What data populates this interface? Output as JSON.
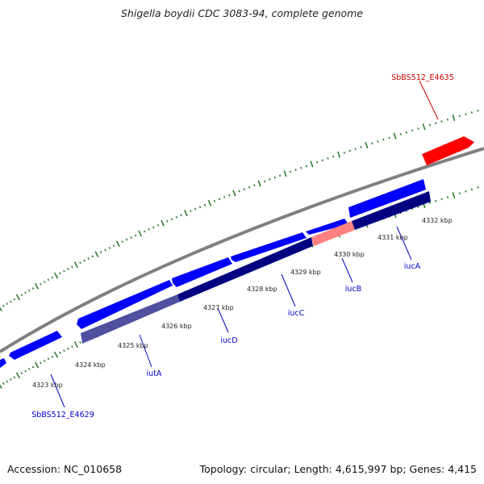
{
  "title": "Shigella boydii CDC 3083-94, complete genome",
  "footer": {
    "accession": "Accession: NC_010658",
    "topology": "Topology: circular; Length: 4,615,997 bp; Genes: 4,415"
  },
  "colors": {
    "backbone": "#808080",
    "cds_forward": "#0000ff",
    "cds_reverse": "#0000ff",
    "operon": "#000080",
    "operon_highlight": "#ff6b6b",
    "operon_light": "#5050a0",
    "feature_red": "#ff0000",
    "tick": "#2f7d2f",
    "gene_label": "#0000cc",
    "feature_label": "#cc0000"
  },
  "ticks": [
    "4323 kbp",
    "4324 kbp",
    "4325 kbp",
    "4326 kbp",
    "4327 kbp",
    "4328 kbp",
    "4329 kbp",
    "4330 kbp",
    "4331 kbp",
    "4332 kbp"
  ],
  "genes": [
    "SbBS512_E4629",
    "iutA",
    "iucD",
    "iucC",
    "iucB",
    "iucA"
  ],
  "features": [
    "SbBS512_E4635"
  ]
}
